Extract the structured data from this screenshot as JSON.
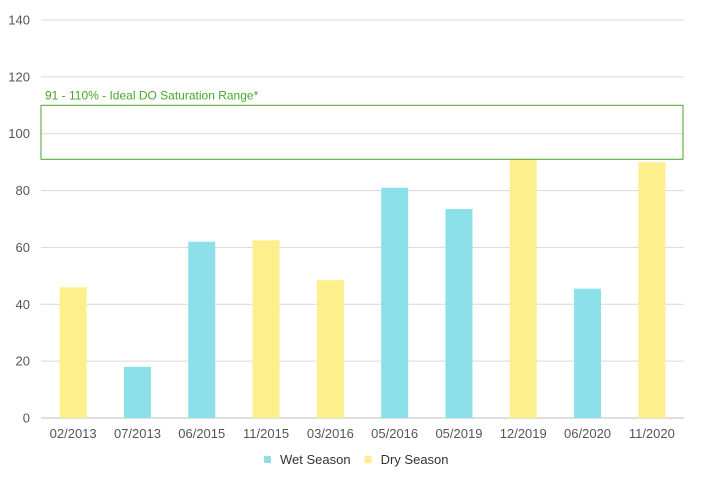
{
  "chart_data": {
    "type": "bar",
    "title": "",
    "xlabel": "",
    "ylabel": "",
    "ylim": [
      0,
      140
    ],
    "yticks": [
      0,
      20,
      40,
      60,
      80,
      100,
      120,
      140
    ],
    "grid": true,
    "legend_position": "bottom",
    "categories": [
      "02/2013",
      "07/2013",
      "06/2015",
      "11/2015",
      "03/2016",
      "05/2016",
      "05/2019",
      "12/2019",
      "06/2020",
      "11/2020"
    ],
    "values": [
      46,
      18,
      62,
      62.5,
      48.5,
      81,
      73.5,
      91,
      45.5,
      90
    ],
    "season": [
      "dry",
      "wet",
      "wet",
      "dry",
      "dry",
      "wet",
      "wet",
      "dry",
      "wet",
      "dry"
    ],
    "series": [
      {
        "key": "wet",
        "name": "Wet Season",
        "color": "#8ce0ea"
      },
      {
        "key": "dry",
        "name": "Dry Season",
        "color": "#fdf08c"
      }
    ],
    "annotation": {
      "label": "91 - 110% - Ideal DO Saturation Range*",
      "ymin": 91,
      "ymax": 110,
      "color": "#4aa62a"
    }
  }
}
